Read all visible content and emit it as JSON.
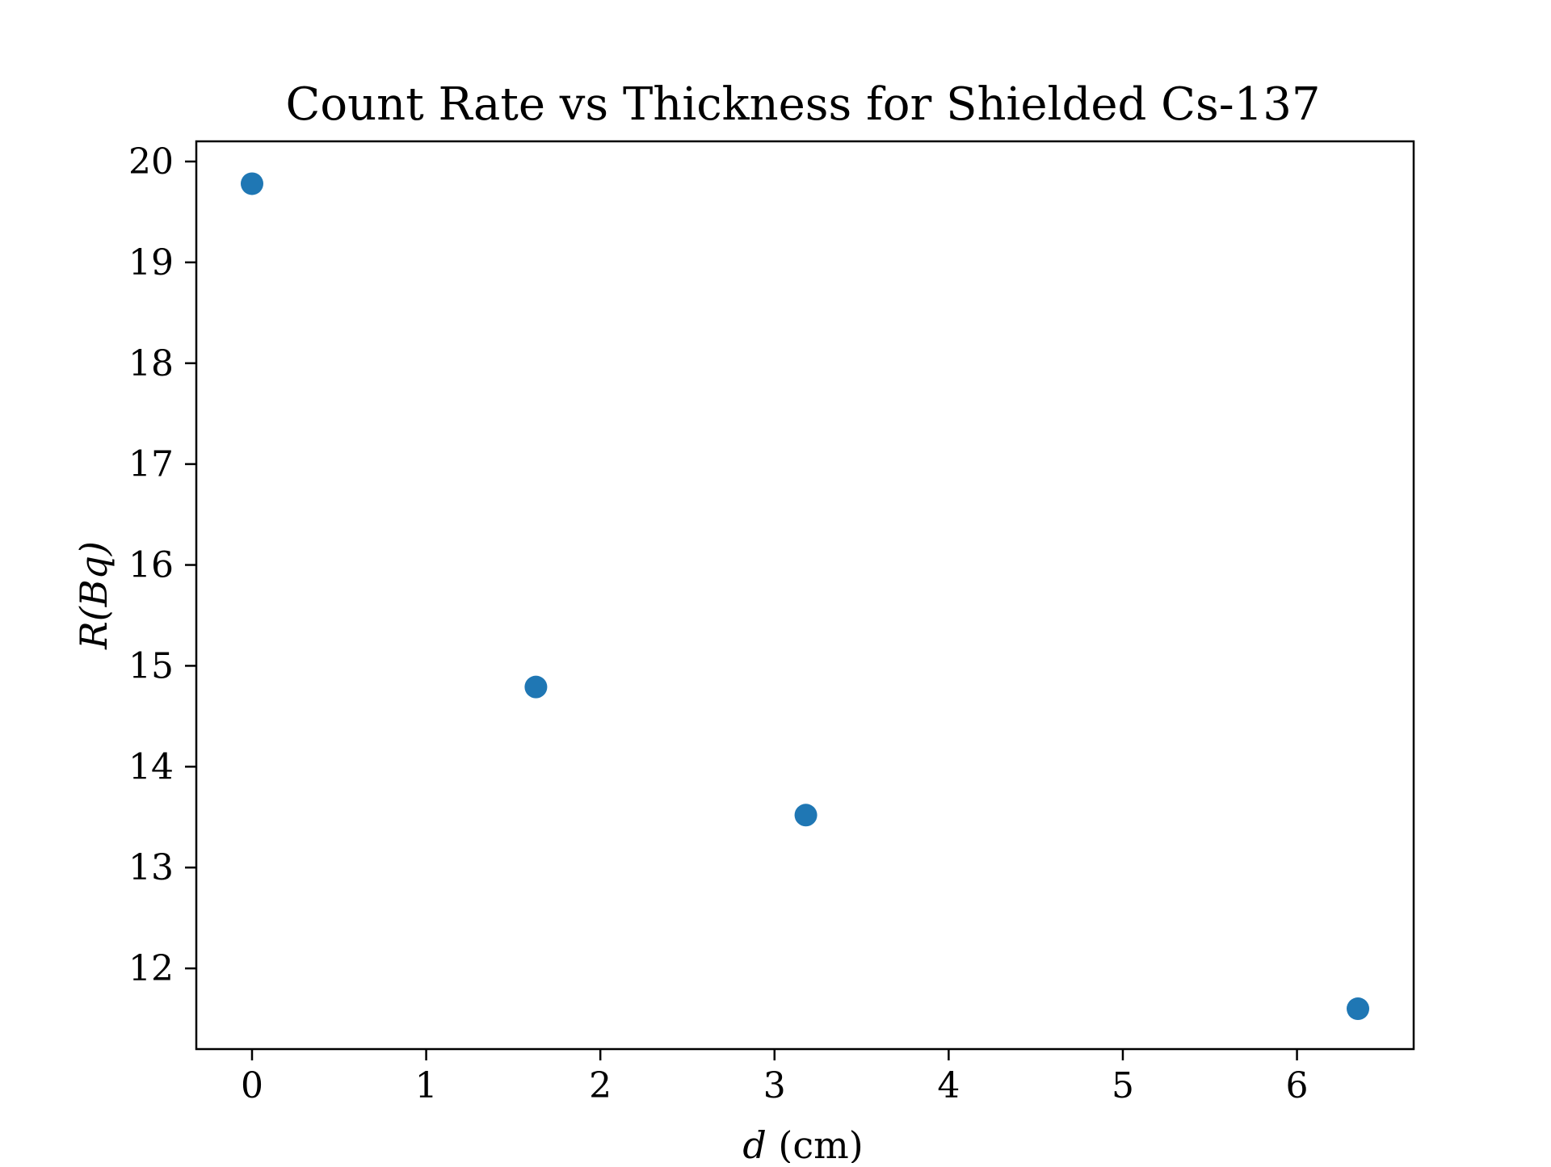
{
  "chart_data": {
    "type": "scatter",
    "title": "Count Rate vs Thickness for Shielded Cs-137",
    "xlabel_var": "d",
    "xlabel_unit": " (cm)",
    "ylabel": "R(Bq)",
    "xlim": [
      -0.32,
      6.67
    ],
    "ylim": [
      11.2,
      20.2
    ],
    "xticks": [
      0,
      1,
      2,
      3,
      4,
      5,
      6
    ],
    "yticks": [
      12,
      13,
      14,
      15,
      16,
      17,
      18,
      19,
      20
    ],
    "grid": false,
    "legend": "none",
    "series": [
      {
        "color": "#1f77b4",
        "points": [
          {
            "x": 0.0,
            "y": 19.78
          },
          {
            "x": 1.63,
            "y": 14.79
          },
          {
            "x": 3.18,
            "y": 13.52
          },
          {
            "x": 6.35,
            "y": 11.6
          }
        ]
      }
    ]
  }
}
